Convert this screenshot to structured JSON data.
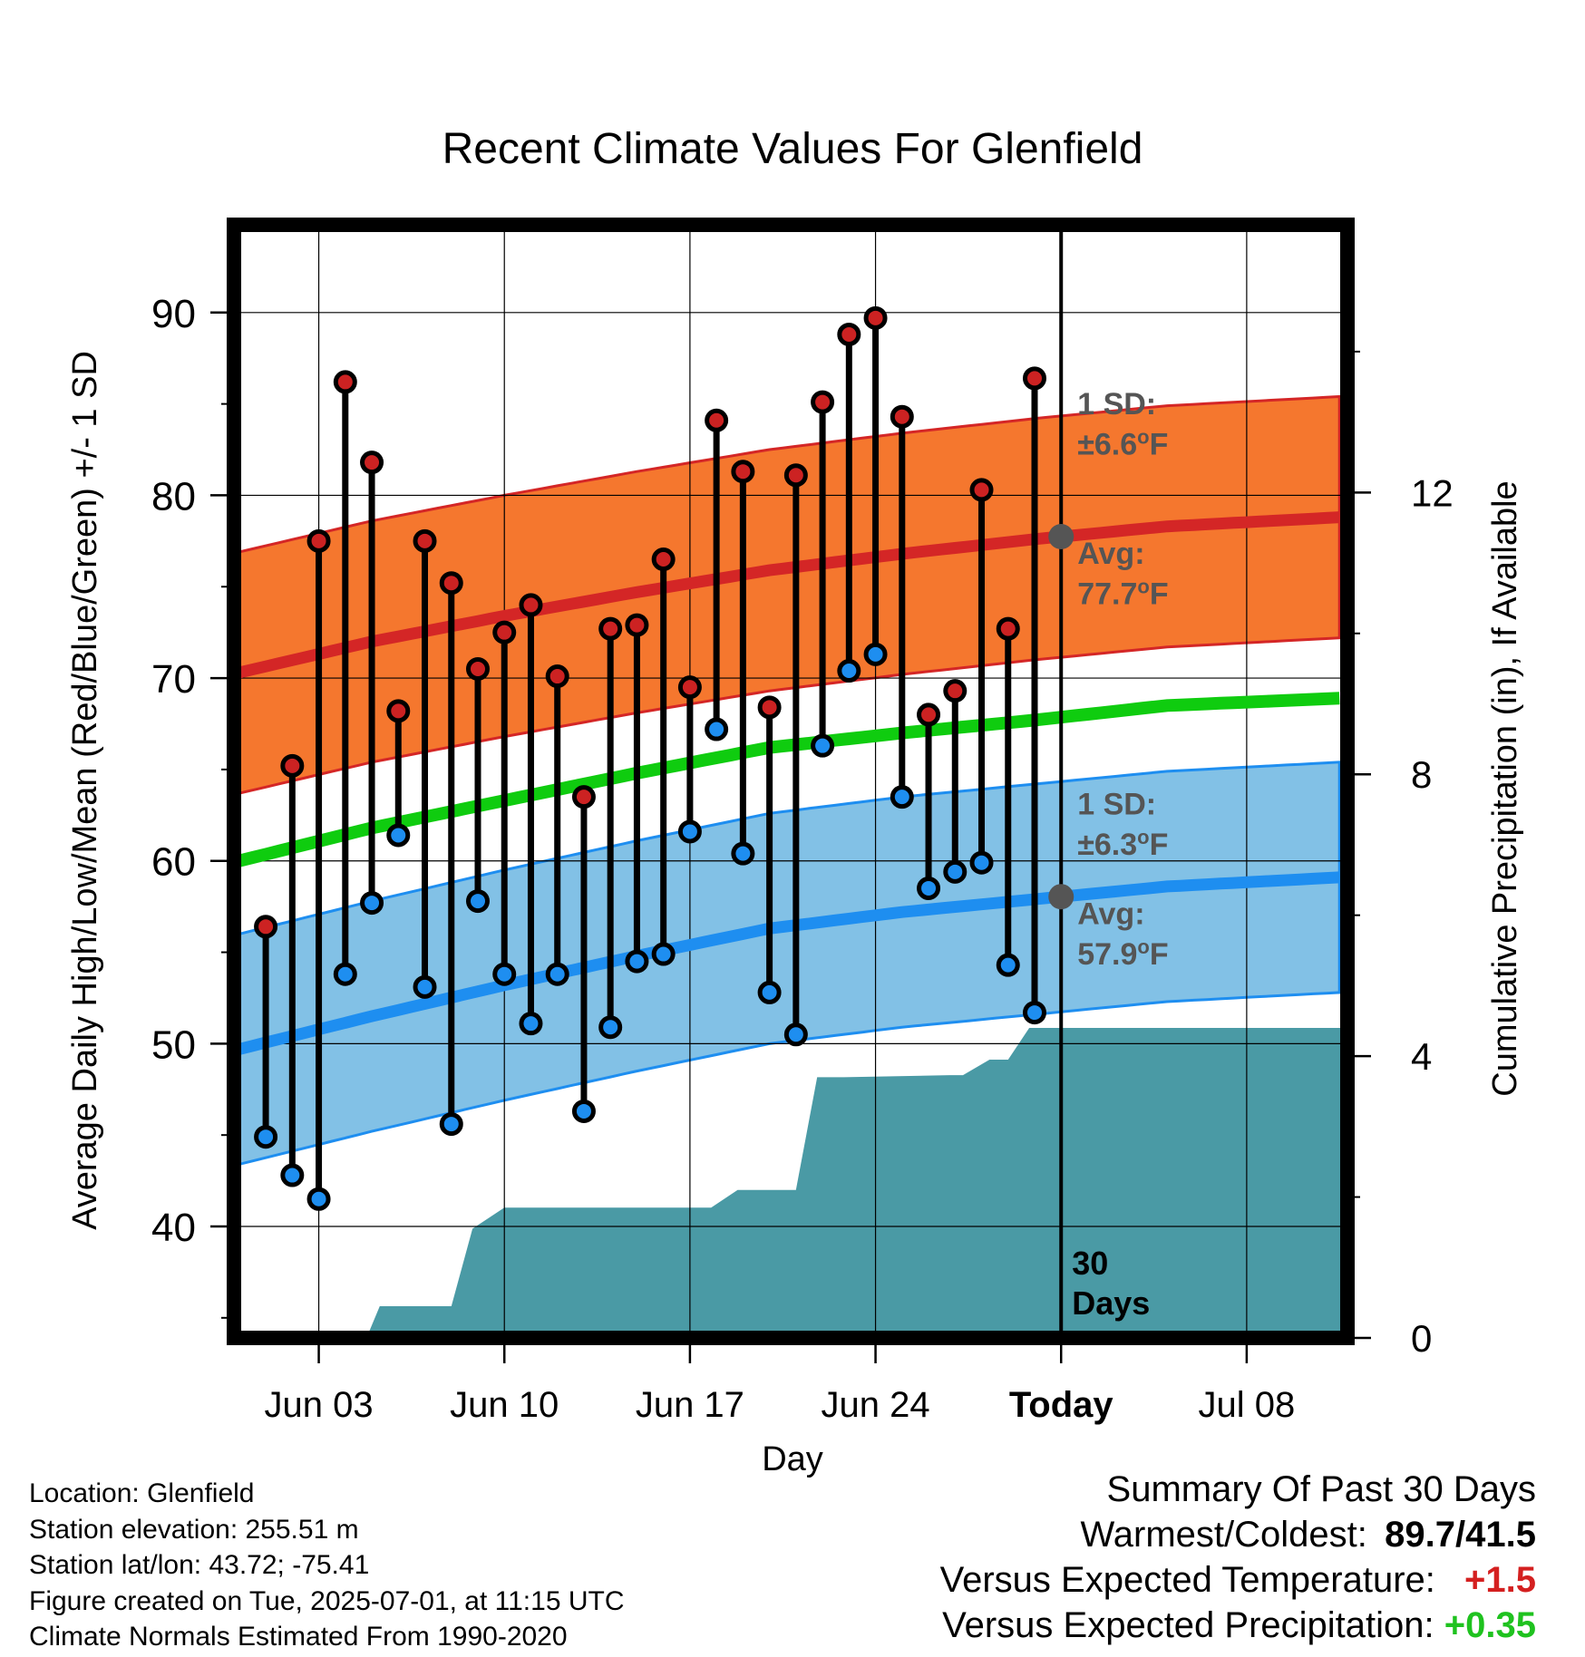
{
  "chart_data": {
    "type": "line",
    "title": "Recent Climate Values For Glenfield",
    "xlabel": "Day",
    "ylabel": "Average Daily High/Low/Mean (Red/Blue/Green) +/- 1 SD",
    "y2label": "Cumulative Precipitation (in), If Available",
    "x_tick_labels": [
      "Jun 03",
      "Jun 10",
      "Jun 17",
      "Jun 24",
      "Today",
      "Jul 08"
    ],
    "x_tick_days": [
      3,
      10,
      17,
      24,
      31,
      38
    ],
    "xlim": [
      -0.2,
      41.8
    ],
    "ylim": [
      33.9,
      94.8
    ],
    "y_ticks": [
      40,
      50,
      60,
      70,
      80,
      90
    ],
    "y2lim": [
      0,
      15.8
    ],
    "y2_ticks": [
      0,
      4,
      8,
      12
    ],
    "grid": true,
    "today_marker": {
      "day": 31,
      "label_line1": "30",
      "label_line2": "Days"
    },
    "normals": {
      "days": [
        0,
        5,
        10,
        15,
        20,
        25,
        30,
        35,
        41.5
      ],
      "high_avg": [
        70.3,
        72.0,
        73.4,
        74.7,
        75.9,
        76.8,
        77.6,
        78.3,
        78.8
      ],
      "low_avg": [
        49.7,
        51.5,
        53.2,
        54.8,
        56.3,
        57.2,
        57.9,
        58.6,
        59.1
      ],
      "mean_avg": [
        60.0,
        61.8,
        63.3,
        64.8,
        66.2,
        67.0,
        67.7,
        68.5,
        68.9
      ],
      "high_sd": 6.6,
      "low_sd": 6.3
    },
    "annotations": {
      "high_sd_label": "1 SD:",
      "high_sd_value": "±6.6",
      "high_avg_label": "Avg:",
      "high_avg_value": "77.7",
      "low_sd_label": "1 SD:",
      "low_sd_value": "±6.3",
      "low_avg_label": "Avg:",
      "low_avg_value": "57.9",
      "unit": "F",
      "degree": "o"
    },
    "highs": [
      56.4,
      65.2,
      77.5,
      86.2,
      81.8,
      68.2,
      77.5,
      75.2,
      70.5,
      72.5,
      74.0,
      70.1,
      63.5,
      72.7,
      72.9,
      76.5,
      69.5,
      84.1,
      81.3,
      68.4,
      81.1,
      85.1,
      88.8,
      89.7,
      84.3,
      68.0,
      69.3,
      80.3,
      72.7,
      86.4
    ],
    "lows": [
      44.9,
      42.8,
      41.5,
      53.8,
      57.7,
      61.4,
      53.1,
      45.6,
      57.8,
      53.8,
      51.1,
      53.8,
      46.3,
      50.9,
      54.5,
      54.9,
      61.6,
      67.2,
      60.4,
      52.8,
      50.5,
      66.3,
      70.4,
      71.3,
      63.5,
      58.5,
      59.4,
      59.9,
      54.3,
      51.7
    ],
    "precip_days": [
      0,
      4.8,
      5.3,
      7.3,
      8.0,
      8.8,
      10.0,
      17.8,
      18.8,
      19.8,
      20.8,
      21.0,
      21.8,
      22.8,
      26.8,
      27.3,
      28.3,
      29.0,
      29.8,
      31,
      41.8
    ],
    "precip_cum": [
      0,
      0,
      0.45,
      0.45,
      0.45,
      1.55,
      1.85,
      1.85,
      2.1,
      2.1,
      2.1,
      2.1,
      3.7,
      3.7,
      3.73,
      3.73,
      3.95,
      3.95,
      4.4,
      4.4,
      4.4
    ]
  },
  "info": {
    "location": "Location: Glenfield",
    "elevation": "Station elevation: 255.51 m",
    "latlon": "Station lat/lon: 43.72; -75.41",
    "created": "Figure created on Tue, 2025-07-01, at 11:15 UTC",
    "normals_source": "Climate Normals Estimated From 1990-2020"
  },
  "summary": {
    "title": "Summary Of Past 30 Days",
    "warmest_coldest_label": "Warmest/Coldest:",
    "warmest_coldest_value": "89.7/41.5",
    "temp_label": "Versus Expected Temperature:",
    "temp_value": "+1.5",
    "precip_label": "Versus Expected Precipitation:",
    "precip_value": "+0.35"
  },
  "colors": {
    "high_band": "#f5772e",
    "high_line": "#d42626",
    "low_band": "#82c1e6",
    "low_line": "#1e8ef0",
    "mean_line": "#0fcc0f",
    "precip_fill": "#4a9aa5",
    "high_dot": "#cc2222",
    "low_dot": "#1e8ef0",
    "annotation_text": "#555555",
    "positive_temp": "#d42020",
    "positive_precip": "#1fc21f"
  }
}
